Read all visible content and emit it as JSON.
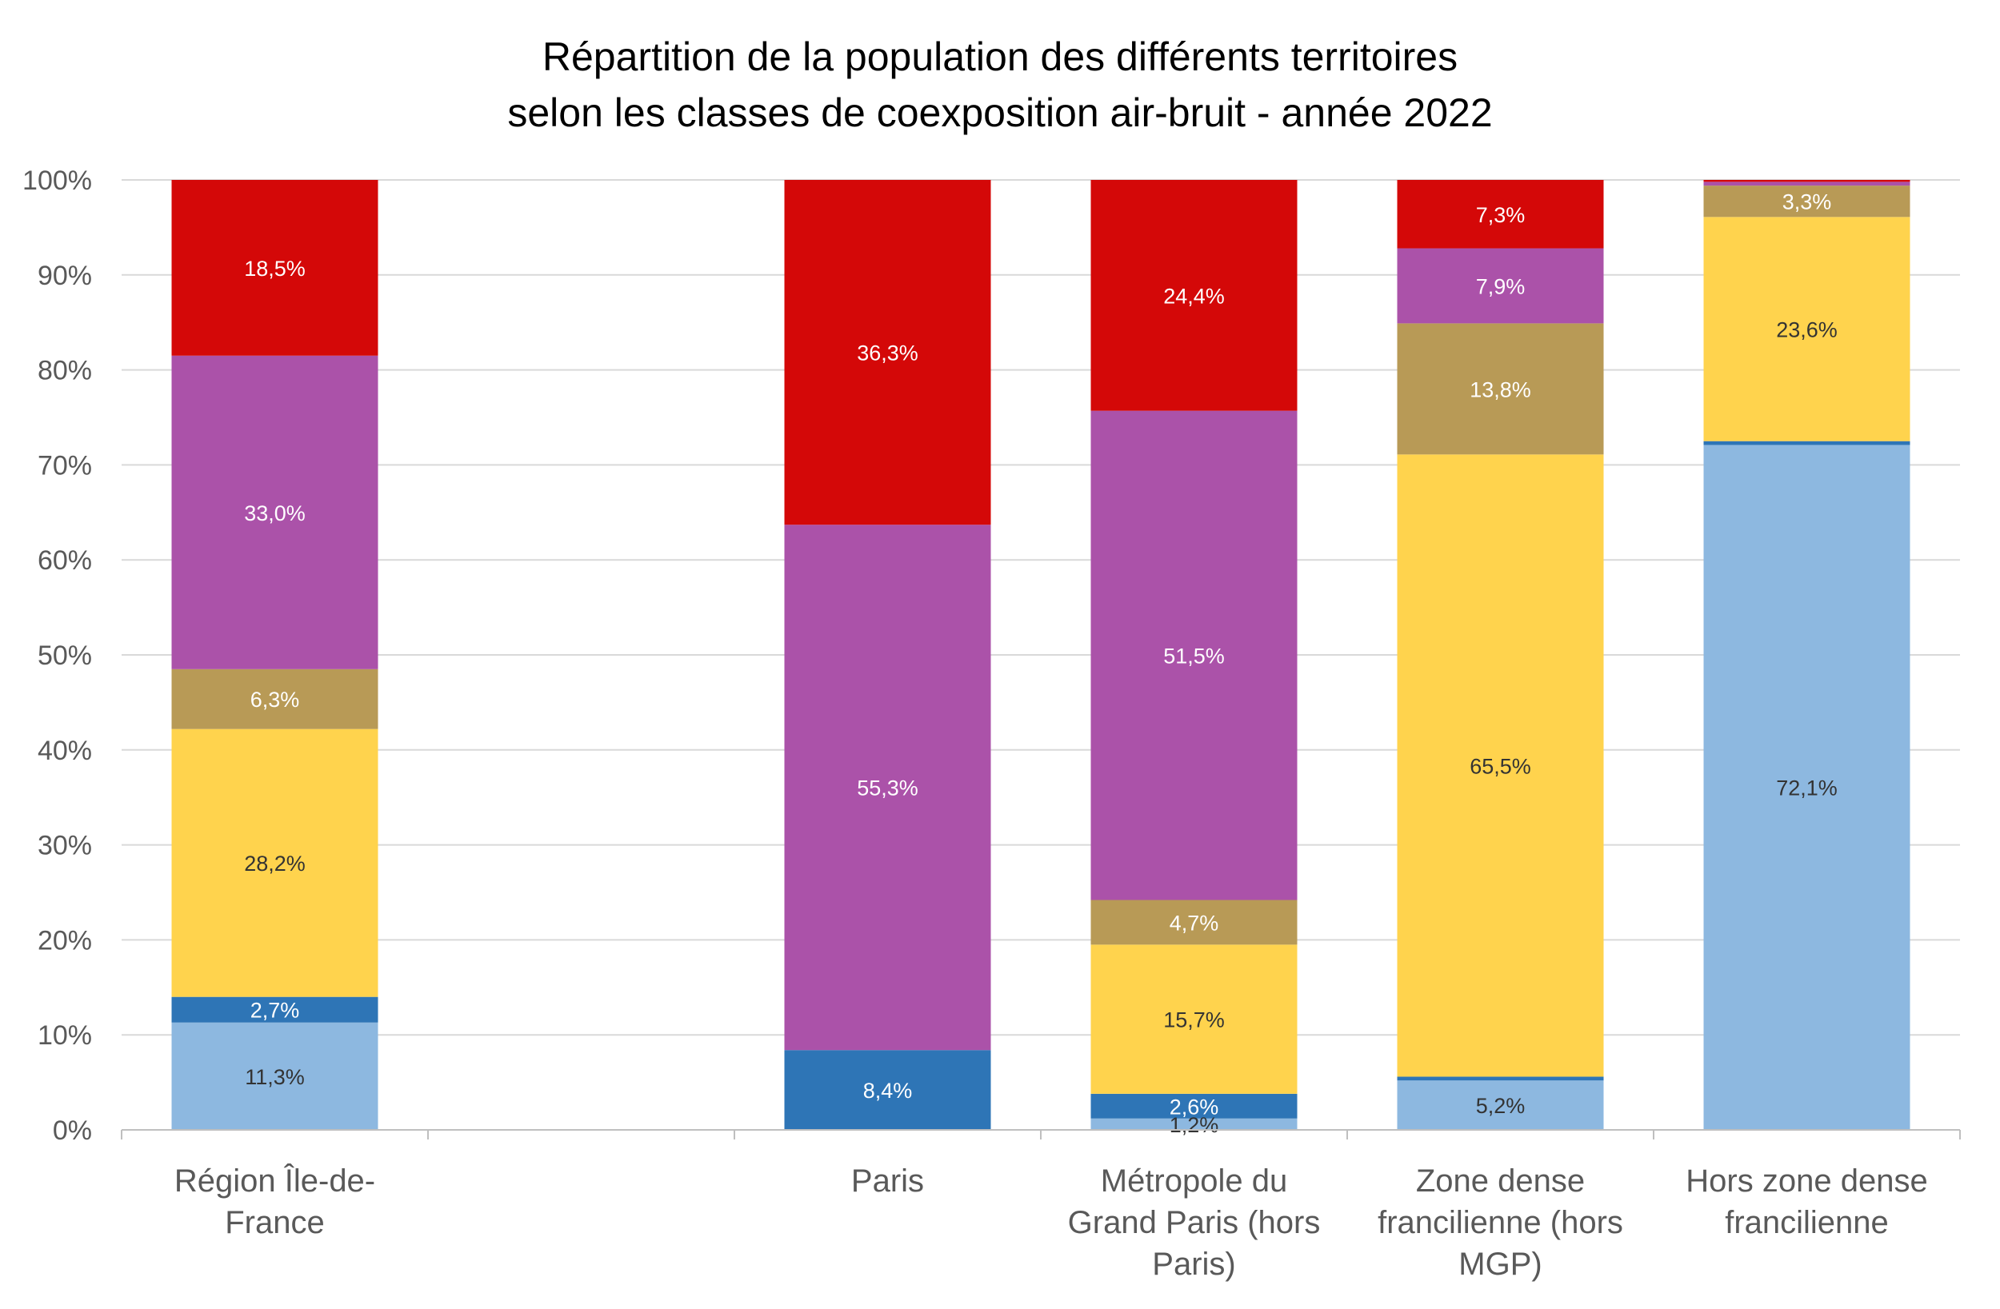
{
  "chart_data": {
    "type": "bar",
    "stacked": true,
    "percent_stacked": true,
    "title": [
      "Répartition de la population des différents territoires",
      "selon les classes de coexposition air-bruit - année 2022"
    ],
    "xlabel": "",
    "ylabel": "",
    "ylim": [
      0,
      100
    ],
    "yticks": [
      "0%",
      "10%",
      "20%",
      "30%",
      "40%",
      "50%",
      "60%",
      "70%",
      "80%",
      "90%",
      "100%"
    ],
    "grid": true,
    "legend": "none",
    "categories": [
      [
        "Région Île-de-",
        "France"
      ],
      [
        ""
      ],
      [
        "Paris"
      ],
      [
        "Métropole du",
        "Grand Paris (hors",
        "Paris)"
      ],
      [
        "Zone dense",
        "francilienne (hors",
        "MGP)"
      ],
      [
        "Hors zone dense",
        "francilienne"
      ]
    ],
    "series": [
      {
        "color": "#8db8e0",
        "label_color": "#333333",
        "values": [
          11.3,
          null,
          0.0,
          1.2,
          5.2,
          72.1
        ],
        "labels": [
          "11,3%",
          "",
          "",
          "1,2%",
          "5,2%",
          "72,1%"
        ]
      },
      {
        "color": "#2e75b6",
        "label_color": "#ffffff",
        "values": [
          2.7,
          null,
          8.4,
          2.6,
          0.4,
          0.4
        ],
        "labels": [
          "2,7%",
          "",
          "8,4%",
          "2,6%",
          "",
          ""
        ]
      },
      {
        "color": "#ffd34d",
        "label_color": "#333333",
        "values": [
          28.2,
          null,
          0.0,
          15.7,
          65.5,
          23.6
        ],
        "labels": [
          "28,2%",
          "",
          "",
          "15,7%",
          "65,5%",
          "23,6%"
        ]
      },
      {
        "color": "#b89a56",
        "label_color": "#ffffff",
        "values": [
          6.3,
          null,
          0.0,
          4.7,
          13.8,
          3.3
        ],
        "labels": [
          "6,3%",
          "",
          "",
          "4,7%",
          "13,8%",
          "3,3%"
        ]
      },
      {
        "color": "#ab52a9",
        "label_color": "#ffffff",
        "values": [
          33.0,
          null,
          55.3,
          51.5,
          7.9,
          0.4
        ],
        "labels": [
          "33,0%",
          "",
          "55,3%",
          "51,5%",
          "7,9%",
          ""
        ]
      },
      {
        "color": "#d40808",
        "label_color": "#ffffff",
        "values": [
          18.5,
          null,
          36.3,
          24.4,
          7.3,
          0.2
        ],
        "labels": [
          "18,5%",
          "",
          "36,3%",
          "24,4%",
          "7,3%",
          ""
        ]
      }
    ]
  }
}
